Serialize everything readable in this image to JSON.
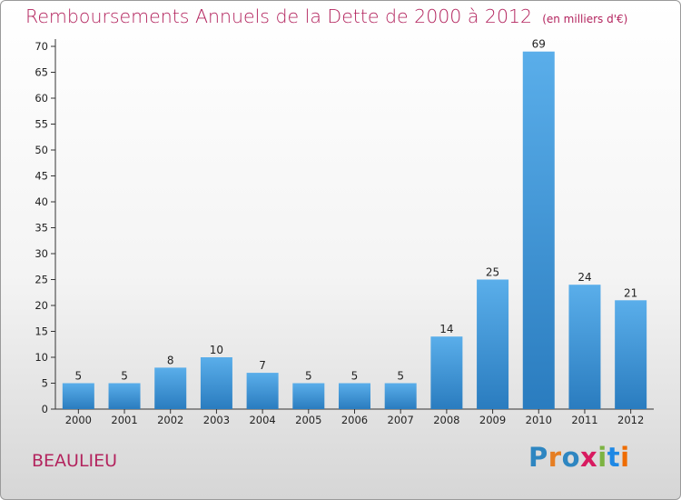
{
  "title": "Remboursements Annuels de la Dette de 2000 à 2012",
  "unit": "(en milliers d'€)",
  "commune": "BEAULIEU",
  "logo": {
    "letters": [
      "P",
      "r",
      "o",
      "x",
      "i",
      "t",
      "i"
    ],
    "colors": [
      "#2e86c1",
      "#e67e22",
      "#2e86c1",
      "#d81b60",
      "#7cb342",
      "#1e88e5",
      "#ef6c00"
    ]
  },
  "chart_data": {
    "type": "bar",
    "categories": [
      "2000",
      "2001",
      "2002",
      "2003",
      "2004",
      "2005",
      "2006",
      "2007",
      "2008",
      "2009",
      "2010",
      "2011",
      "2012"
    ],
    "values": [
      5,
      5,
      8,
      10,
      7,
      5,
      5,
      5,
      14,
      25,
      69,
      24,
      21
    ],
    "ylim": [
      0,
      70
    ],
    "yticks": [
      0,
      5,
      10,
      15,
      20,
      25,
      30,
      35,
      40,
      45,
      50,
      55,
      60,
      65,
      70
    ],
    "grid": false,
    "bar_color": "#3a93d6"
  }
}
